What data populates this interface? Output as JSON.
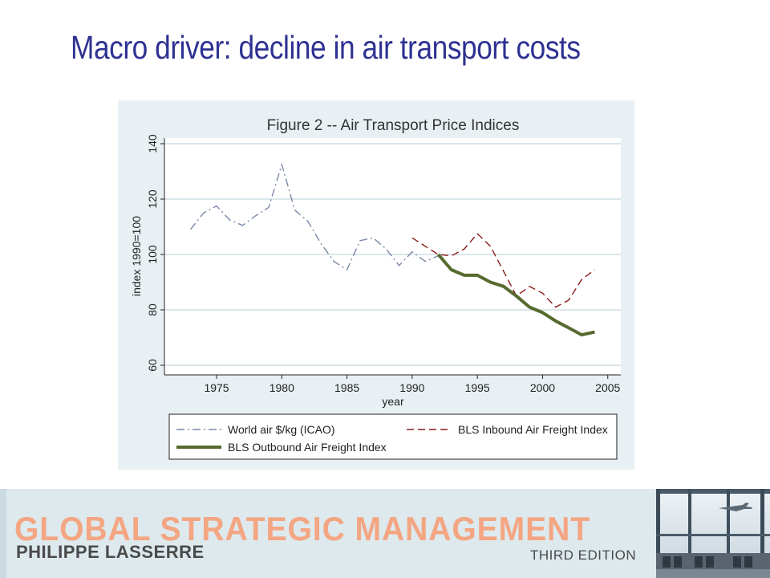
{
  "slide": {
    "title": "Macro driver: decline in air transport costs"
  },
  "banner": {
    "title": "GLOBAL STRATEGIC MANAGEMENT",
    "author": "PHILIPPE LASSERRE",
    "edition": "THIRD EDITION",
    "photo_icon": "airport-window-airplane-photo",
    "colors": {
      "background": "#dde9ed",
      "title": "#f4a582",
      "author": "#4a4a4a"
    }
  },
  "chart_data": {
    "type": "line",
    "title": "Figure 2 -- Air Transport Price Indices",
    "xlabel": "year",
    "ylabel": "index 1990=100",
    "xlim": [
      1971,
      2006
    ],
    "ylim": [
      60,
      142
    ],
    "xticks": [
      1975,
      1980,
      1985,
      1990,
      1995,
      2000,
      2005
    ],
    "yticks": [
      60,
      80,
      100,
      120,
      140
    ],
    "grid": true,
    "legend_position": "bottom",
    "series": [
      {
        "name": "World air $/kg (ICAO)",
        "style": "dash-dot",
        "color": "#7a8aa6",
        "x": [
          1973,
          1974,
          1975,
          1976,
          1977,
          1978,
          1979,
          1980,
          1981,
          1982,
          1983,
          1984,
          1985,
          1986,
          1987,
          1988,
          1989,
          1990,
          1991,
          1992
        ],
        "y": [
          109,
          115,
          117.5,
          112.5,
          110.5,
          114,
          117,
          132.5,
          116,
          112,
          104,
          97.5,
          94.5,
          105,
          106,
          102,
          96,
          101,
          97.5,
          99.5
        ]
      },
      {
        "name": "BLS Inbound Air Freight Index",
        "style": "dashed",
        "color": "#8b1a1a",
        "x": [
          1990,
          1991,
          1992,
          1993,
          1994,
          1995,
          1996,
          1997,
          1998,
          1999,
          2000,
          2001,
          2002,
          2003,
          2004
        ],
        "y": [
          106,
          103,
          100,
          99.5,
          102,
          107.5,
          103,
          94,
          85,
          88.5,
          86,
          81,
          83.5,
          91,
          94.5
        ]
      },
      {
        "name": "BLS Outbound Air Freight Index",
        "style": "solid",
        "color": "#556b2f",
        "x": [
          1992,
          1993,
          1994,
          1995,
          1996,
          1997,
          1998,
          1999,
          2000,
          2001,
          2002,
          2003,
          2004
        ],
        "y": [
          100,
          94.5,
          92.5,
          92.5,
          90,
          88.5,
          85,
          81,
          79,
          76,
          73.5,
          71,
          72
        ]
      }
    ]
  }
}
